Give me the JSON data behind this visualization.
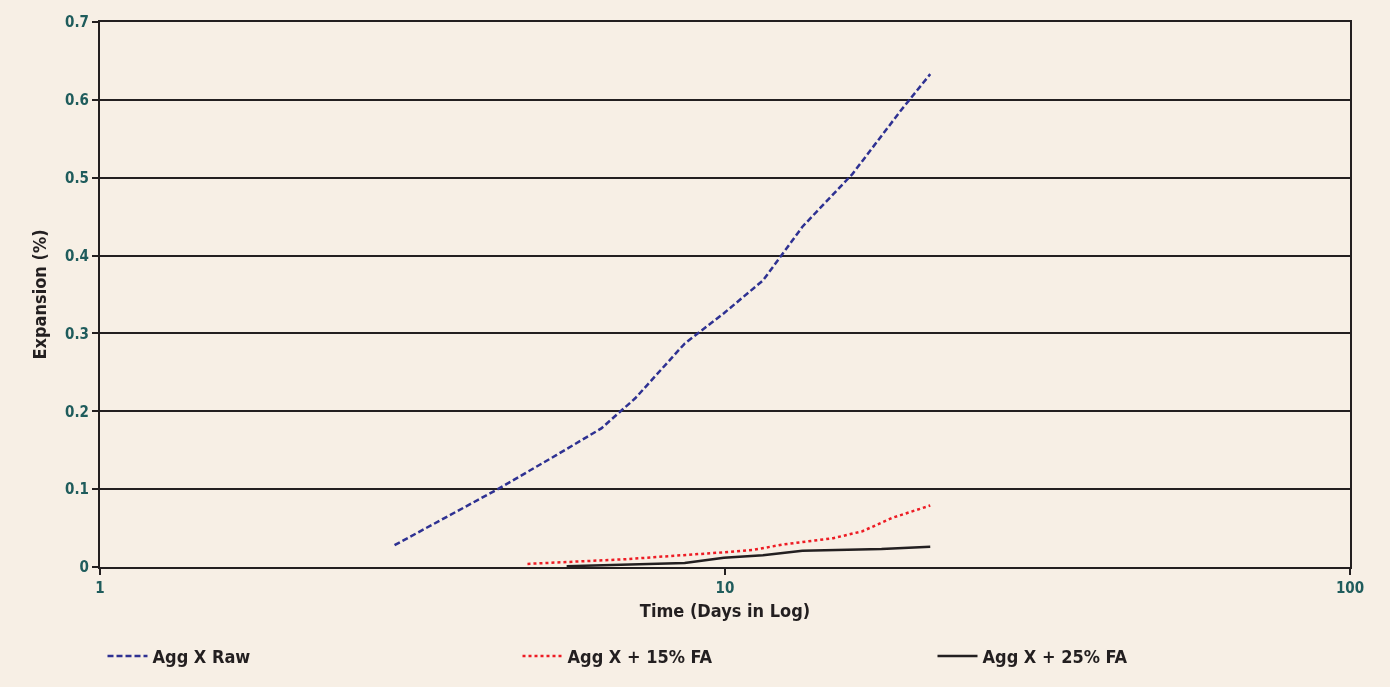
{
  "chart_data": {
    "type": "line",
    "xlabel": "Time (Days in Log)",
    "ylabel": "Expansion (%)",
    "log": "x",
    "grid": "y",
    "legend": "bottom",
    "marker": "none",
    "xlim": [
      1,
      100
    ],
    "xticks": [
      1,
      10,
      100
    ],
    "ylim": [
      0,
      0.7
    ],
    "yticks": [
      0,
      0.1,
      0.2,
      0.3,
      0.4,
      0.5,
      0.6,
      0.7
    ],
    "series": [
      {
        "name": "Agg X Raw",
        "color": "#2e3192",
        "line_style": "dashed",
        "x": [
          2.96,
          4.33,
          5.38,
          6.34,
          7.19,
          8.62,
          9.96,
          11.5,
          13.3,
          16.0,
          19.1,
          21.3
        ],
        "values": [
          0.028,
          0.1,
          0.144,
          0.178,
          0.217,
          0.287,
          0.326,
          0.368,
          0.437,
          0.505,
          0.586,
          0.633
        ]
      },
      {
        "name": "Agg X + 15% FA",
        "color": "#ed1c24",
        "line_style": "dotted",
        "x": [
          4.83,
          6.93,
          10.0,
          11.1,
          12.4,
          14.9,
          16.6,
          18.5,
          21.3
        ],
        "values": [
          0.004,
          0.01,
          0.019,
          0.022,
          0.029,
          0.037,
          0.046,
          0.063,
          0.079
        ]
      },
      {
        "name": "Agg X + 25% FA",
        "color": "#231f20",
        "line_style": "solid",
        "x": [
          5.58,
          8.62,
          9.96,
          11.5,
          13.3,
          17.8,
          21.3
        ],
        "values": [
          0.001,
          0.005,
          0.012,
          0.015,
          0.021,
          0.023,
          0.026
        ]
      }
    ]
  }
}
